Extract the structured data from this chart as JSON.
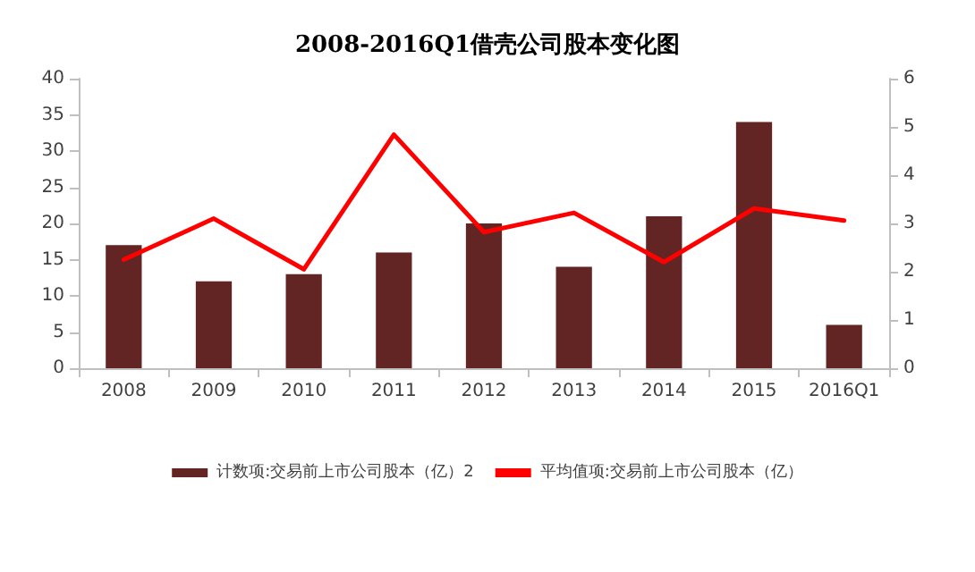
{
  "chart_data": {
    "type": "bar",
    "title": "2008-2016Q1借壳公司股本变化图",
    "categories": [
      "2008",
      "2009",
      "2010",
      "2011",
      "2012",
      "2013",
      "2014",
      "2015",
      "2016Q1"
    ],
    "series": [
      {
        "name": "计数项:交易前上市公司股本（亿）2",
        "color": "#632523",
        "values": [
          17,
          12,
          13,
          16,
          20,
          14,
          21,
          34,
          6
        ]
      },
      {
        "name": "平均值项:交易前上市公司股本（亿）",
        "type": "line",
        "axis": "y2",
        "color": "#ff0000",
        "values": [
          2.25,
          3.1,
          2.05,
          4.84,
          2.82,
          3.22,
          2.2,
          3.31,
          3.06
        ]
      }
    ],
    "ylim": [
      0,
      40
    ],
    "yticks": [
      0,
      5,
      10,
      15,
      20,
      25,
      30,
      35,
      40
    ],
    "y2lim": [
      0,
      6
    ],
    "y2ticks": [
      0,
      1,
      2,
      3,
      4,
      5,
      6
    ],
    "legend": "bottom",
    "grid": false,
    "marker": "none",
    "line_style": "solid"
  }
}
